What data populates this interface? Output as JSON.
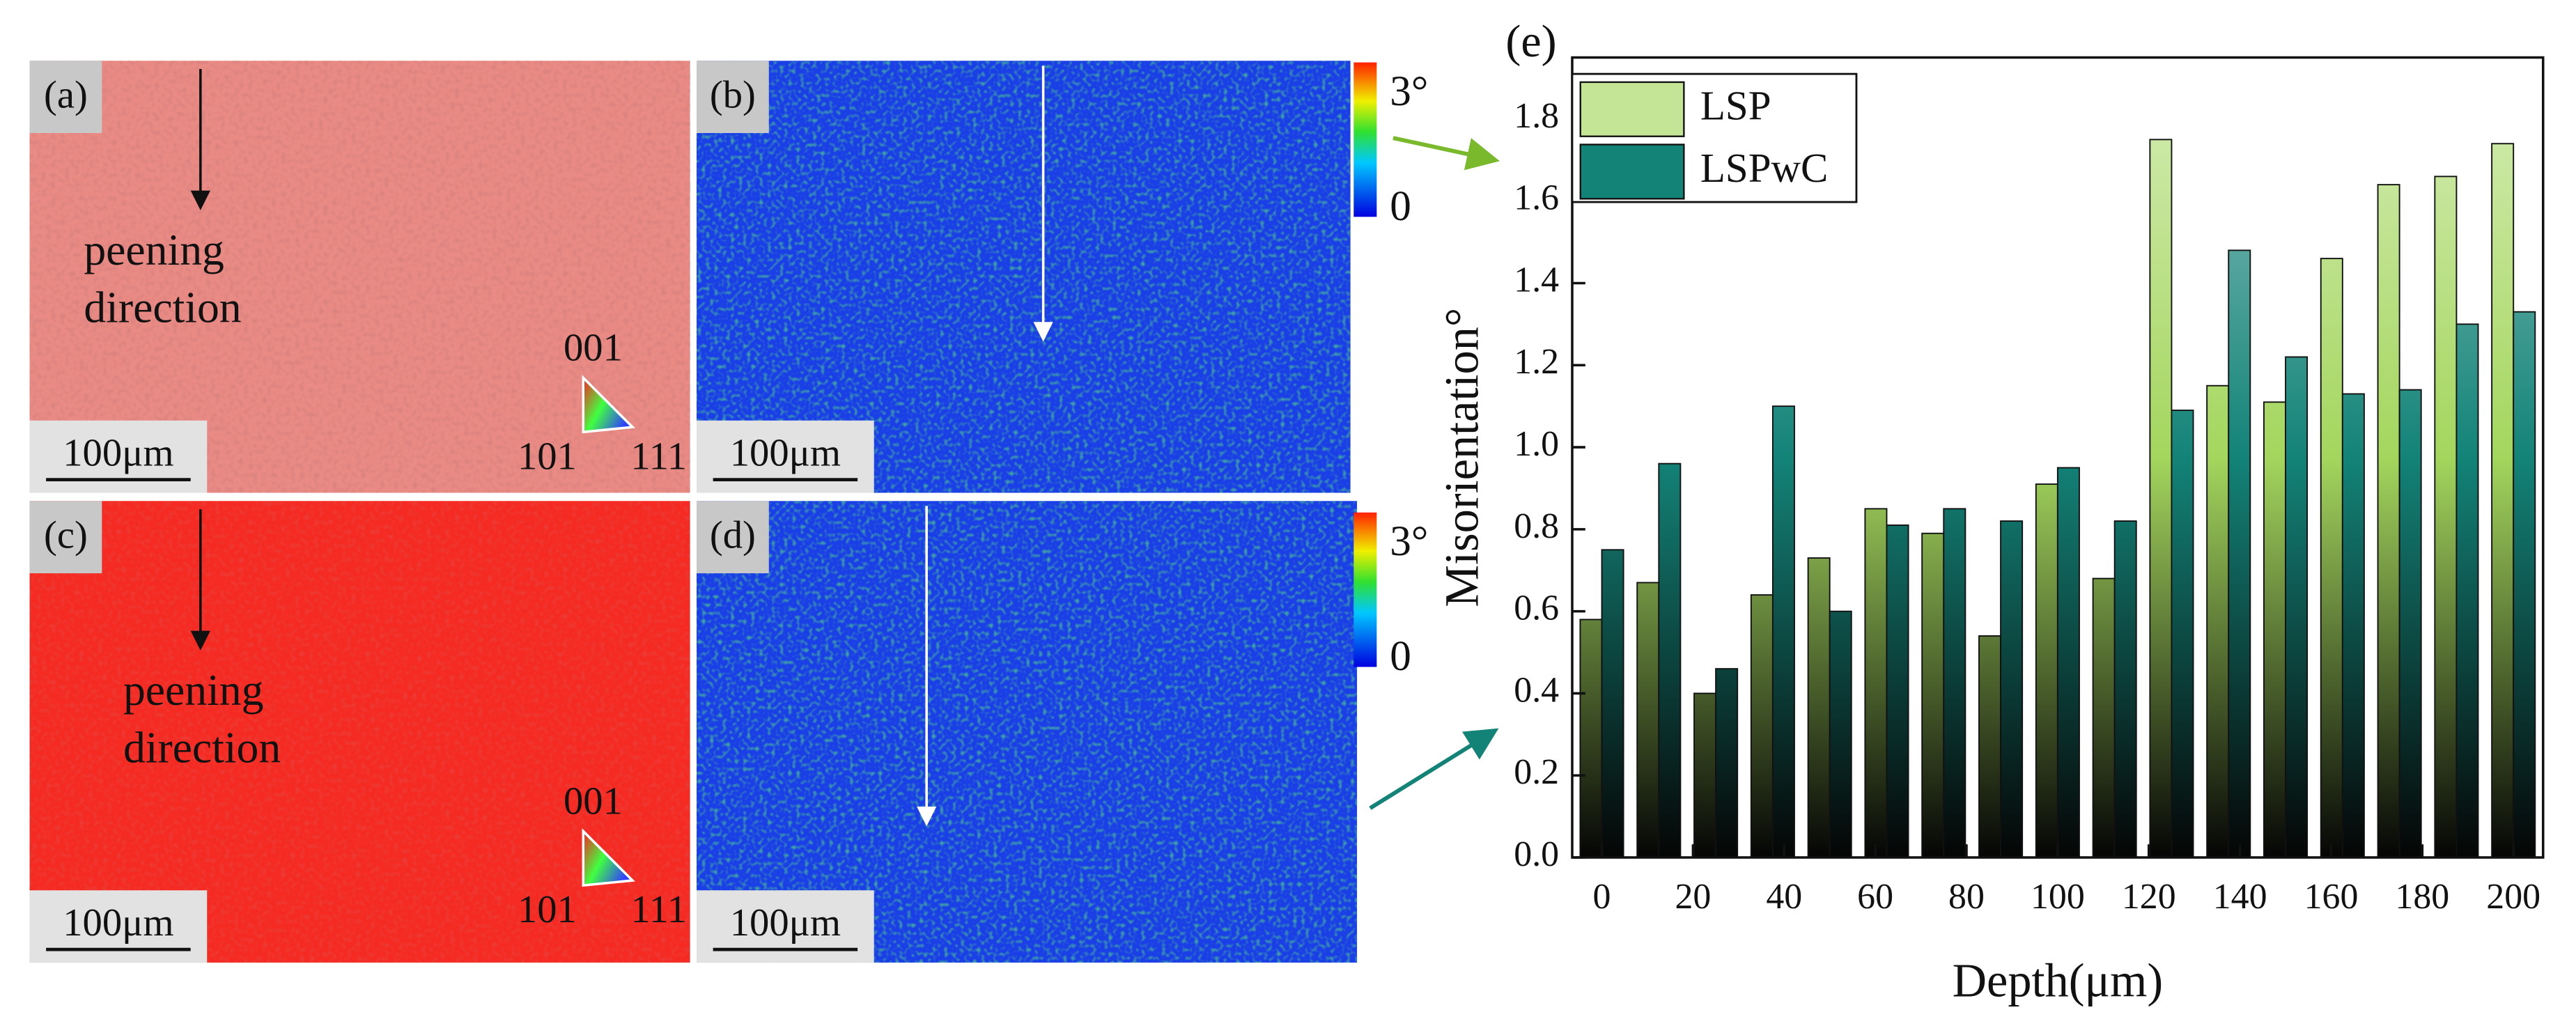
{
  "chart_data": {
    "type": "bar",
    "panel_label": "(e)",
    "x_label": "Depth(μm)",
    "y_label": "Misorientation°",
    "x": [
      0,
      12.5,
      25,
      37.5,
      50,
      62.5,
      75,
      87.5,
      100,
      112.5,
      125,
      137.5,
      150,
      162.5,
      175,
      187.5,
      200
    ],
    "series": [
      {
        "name": "LSP",
        "color": "#a4d65e",
        "values": [
          0.58,
          0.67,
          0.4,
          0.64,
          0.73,
          0.85,
          0.79,
          0.54,
          0.91,
          0.68,
          1.75,
          1.15,
          1.11,
          1.46,
          1.64,
          1.66,
          1.74
        ]
      },
      {
        "name": "LSPwC",
        "color": "#138378",
        "values": [
          0.75,
          0.96,
          0.46,
          1.1,
          0.6,
          0.81,
          0.85,
          0.82,
          0.95,
          0.82,
          1.09,
          1.48,
          1.22,
          1.13,
          1.14,
          1.3,
          1.33
        ]
      }
    ],
    "xlim": [
      -6.5,
      206.5
    ],
    "ylim": [
      0,
      1.95
    ],
    "xticks": [
      0,
      20,
      40,
      60,
      80,
      100,
      120,
      140,
      160,
      180,
      200
    ],
    "yticks": [
      {
        "value": 0,
        "label": "0.0"
      },
      {
        "value": 0.2,
        "label": "0.2"
      },
      {
        "value": 0.4,
        "label": "0.4"
      },
      {
        "value": 0.6,
        "label": "0.6"
      },
      {
        "value": 0.8,
        "label": "0.8"
      },
      {
        "value": 1.0,
        "label": "1.0"
      },
      {
        "value": 1.2,
        "label": "1.2"
      },
      {
        "value": 1.4,
        "label": "1.4"
      },
      {
        "value": 1.6,
        "label": "1.6"
      },
      {
        "value": 1.8,
        "label": "1.8"
      }
    ],
    "legend": "upper left"
  },
  "panels": [
    {
      "label": "(a)",
      "scale": "100μm",
      "direction": [
        "peening",
        "direction"
      ],
      "ipf": [
        "001",
        "101",
        "111"
      ]
    },
    {
      "label": "(b)",
      "scale": "100μm",
      "colorbar": [
        "3°",
        "0"
      ]
    },
    {
      "label": "(c)",
      "scale": "100μm",
      "direction": [
        "peening",
        "direction"
      ],
      "ipf": [
        "001",
        "101",
        "111"
      ]
    },
    {
      "label": "(d)",
      "scale": "100μm",
      "colorbar": [
        "3°",
        "0"
      ]
    }
  ]
}
